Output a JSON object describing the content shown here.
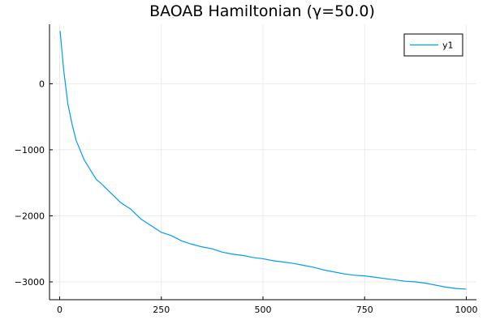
{
  "chart_data": {
    "type": "line",
    "title": "BAOAB Hamiltonian (γ=50.0)",
    "xlabel": "",
    "ylabel": "",
    "xlim": [
      -25,
      1025
    ],
    "ylim": [
      -3270,
      900
    ],
    "x_ticks": [
      0,
      250,
      500,
      750,
      1000
    ],
    "x_tick_labels": [
      "0",
      "250",
      "500",
      "750",
      "1000"
    ],
    "y_ticks": [
      0,
      -1000,
      -2000,
      -3000
    ],
    "y_tick_labels": [
      "0",
      "−1000",
      "−2000",
      "−3000"
    ],
    "grid": true,
    "legend_position": "top-right",
    "colors": {
      "series": "#009af9",
      "axis": "#000000",
      "grid": "#ebebeb"
    },
    "series": [
      {
        "name": "y1",
        "x": [
          1,
          10,
          20,
          30,
          40,
          50,
          60,
          70,
          80,
          90,
          100,
          125,
          150,
          175,
          200,
          225,
          250,
          275,
          300,
          325,
          350,
          375,
          400,
          425,
          450,
          475,
          500,
          525,
          550,
          575,
          600,
          625,
          650,
          675,
          700,
          725,
          750,
          775,
          800,
          825,
          850,
          875,
          900,
          925,
          950,
          975,
          1000
        ],
        "values": [
          800,
          200,
          -300,
          -600,
          -850,
          -1000,
          -1150,
          -1250,
          -1350,
          -1450,
          -1500,
          -1650,
          -1800,
          -1900,
          -2050,
          -2150,
          -2250,
          -2300,
          -2380,
          -2430,
          -2470,
          -2500,
          -2550,
          -2580,
          -2600,
          -2630,
          -2650,
          -2680,
          -2700,
          -2720,
          -2750,
          -2780,
          -2820,
          -2850,
          -2880,
          -2900,
          -2910,
          -2930,
          -2950,
          -2970,
          -2990,
          -3000,
          -3020,
          -3050,
          -3080,
          -3100,
          -3110
        ]
      }
    ]
  }
}
